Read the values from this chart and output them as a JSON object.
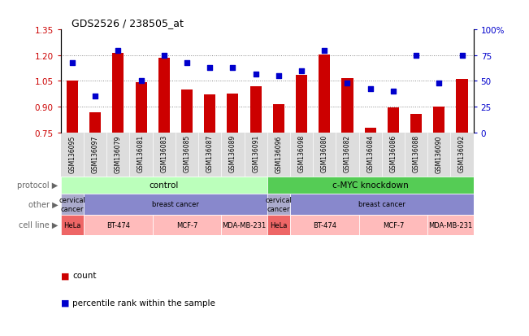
{
  "title": "GDS2526 / 238505_at",
  "samples": [
    "GSM136095",
    "GSM136097",
    "GSM136079",
    "GSM136081",
    "GSM136083",
    "GSM136085",
    "GSM136087",
    "GSM136089",
    "GSM136091",
    "GSM136096",
    "GSM136098",
    "GSM136080",
    "GSM136082",
    "GSM136084",
    "GSM136086",
    "GSM136088",
    "GSM136090",
    "GSM136092"
  ],
  "bar_values": [
    1.05,
    0.865,
    1.215,
    1.04,
    1.185,
    1.0,
    0.97,
    0.975,
    1.02,
    0.915,
    1.085,
    1.205,
    1.065,
    0.775,
    0.895,
    0.855,
    0.9,
    1.06
  ],
  "scatter_values": [
    68,
    35,
    80,
    50,
    75,
    68,
    63,
    63,
    57,
    55,
    60,
    80,
    48,
    42,
    40,
    75,
    48,
    75
  ],
  "ylim_left": [
    0.75,
    1.35
  ],
  "ylim_right": [
    0,
    100
  ],
  "yticks_left": [
    0.75,
    0.9,
    1.05,
    1.2,
    1.35
  ],
  "yticks_right": [
    0,
    25,
    50,
    75,
    100
  ],
  "bar_color": "#cc0000",
  "scatter_color": "#0000cc",
  "bar_baseline": 0.75,
  "protocol_labels": [
    "control",
    "c-MYC knockdown"
  ],
  "protocol_colors": [
    "#bbffbb",
    "#55cc55"
  ],
  "other_color_cervical": "#aaaacc",
  "other_color_breast": "#8888cc",
  "cell_line_groups": [
    {
      "label": "HeLa",
      "start": 0,
      "end": 1,
      "color": "#ee6666"
    },
    {
      "label": "BT-474",
      "start": 1,
      "end": 4,
      "color": "#ffbbbb"
    },
    {
      "label": "MCF-7",
      "start": 4,
      "end": 7,
      "color": "#ffbbbb"
    },
    {
      "label": "MDA-MB-231",
      "start": 7,
      "end": 9,
      "color": "#ffbbbb"
    },
    {
      "label": "HeLa",
      "start": 9,
      "end": 10,
      "color": "#ee6666"
    },
    {
      "label": "BT-474",
      "start": 10,
      "end": 13,
      "color": "#ffbbbb"
    },
    {
      "label": "MCF-7",
      "start": 13,
      "end": 16,
      "color": "#ffbbbb"
    },
    {
      "label": "MDA-MB-231",
      "start": 16,
      "end": 18,
      "color": "#ffbbbb"
    }
  ],
  "legend_count_color": "#cc0000",
  "legend_percentile_color": "#0000cc",
  "grid_color": "#888888",
  "tick_color_left": "#cc0000",
  "tick_color_right": "#0000cc",
  "xtick_bg": "#dddddd",
  "row_label_color": "#666666",
  "arrow_color": "#888888"
}
